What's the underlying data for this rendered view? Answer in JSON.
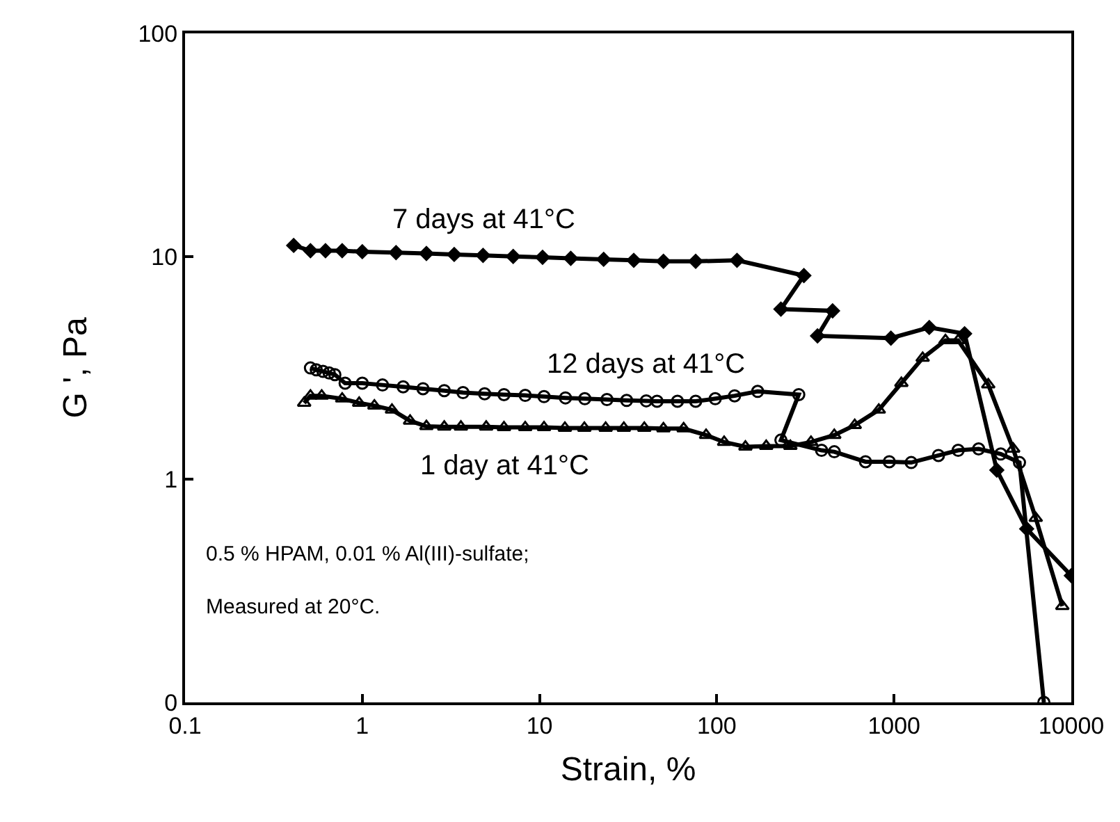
{
  "chart_data": {
    "type": "line",
    "xlabel": "Strain, %",
    "ylabel": "G ', Pa",
    "log": "xy",
    "grid": false,
    "legend": false,
    "xlim": [
      0.1,
      10000
    ],
    "xticks": [
      0.1,
      1,
      10,
      100,
      1000,
      10000
    ],
    "ylim": [
      0.1,
      100
    ],
    "yticks": [
      {
        "value": 0.1,
        "label": "0"
      },
      1,
      10,
      100
    ],
    "series": [
      {
        "name": "7 days at 41°C",
        "color": "#000000",
        "marker": "diamond",
        "x": [
          0.41,
          0.51,
          0.62,
          0.77,
          1.0,
          1.55,
          2.3,
          3.3,
          4.8,
          7.1,
          10.4,
          15,
          23,
          34,
          50,
          76,
          130,
          310,
          230,
          450,
          370,
          960,
          1580,
          2500,
          3800,
          5600,
          10000
        ],
        "values": [
          11.2,
          10.6,
          10.6,
          10.6,
          10.5,
          10.4,
          10.3,
          10.2,
          10.1,
          10,
          9.9,
          9.8,
          9.7,
          9.6,
          9.5,
          9.5,
          9.6,
          8.2,
          5.8,
          5.7,
          4.4,
          4.3,
          4.8,
          4.5,
          1.1,
          0.6,
          0.37
        ]
      },
      {
        "name": "12 days at 41°C",
        "color": "#000000",
        "marker": "circle",
        "x": [
          0.51,
          0.55,
          0.6,
          0.65,
          0.7,
          0.8,
          1.0,
          1.3,
          1.7,
          2.2,
          2.9,
          3.7,
          4.9,
          6.3,
          8.3,
          10.6,
          14,
          18,
          24,
          31,
          40,
          46,
          60,
          76,
          98,
          126,
          170,
          290,
          230,
          390,
          460,
          690,
          940,
          1250,
          1780,
          2300,
          3000,
          4000,
          5100,
          7000
        ],
        "values": [
          3.16,
          3.1,
          3.05,
          3.0,
          2.95,
          2.7,
          2.7,
          2.65,
          2.6,
          2.55,
          2.5,
          2.45,
          2.42,
          2.4,
          2.38,
          2.35,
          2.32,
          2.3,
          2.28,
          2.26,
          2.25,
          2.24,
          2.24,
          2.24,
          2.3,
          2.37,
          2.48,
          2.4,
          1.5,
          1.35,
          1.33,
          1.2,
          1.2,
          1.19,
          1.28,
          1.35,
          1.37,
          1.3,
          1.19,
          0.1
        ]
      },
      {
        "name": "1 day at 41°C",
        "color": "#000000",
        "marker": "triangle",
        "x": [
          0.47,
          0.51,
          0.59,
          0.77,
          0.96,
          1.17,
          1.47,
          1.86,
          2.3,
          2.9,
          3.6,
          5.0,
          6.3,
          8.3,
          10.6,
          13.9,
          17.9,
          23.6,
          29.9,
          39,
          50,
          65,
          87,
          110,
          145,
          190,
          260,
          340,
          460,
          600,
          820,
          1100,
          1450,
          1950,
          2300,
          3400,
          4700,
          6300,
          8900
        ],
        "values": [
          2.2,
          2.37,
          2.37,
          2.3,
          2.2,
          2.14,
          2.05,
          1.83,
          1.73,
          1.72,
          1.72,
          1.72,
          1.71,
          1.71,
          1.71,
          1.7,
          1.7,
          1.7,
          1.7,
          1.7,
          1.69,
          1.69,
          1.58,
          1.47,
          1.4,
          1.41,
          1.41,
          1.47,
          1.58,
          1.75,
          2.05,
          2.7,
          3.5,
          4.2,
          4.2,
          2.66,
          1.37,
          0.67,
          0.27
        ]
      }
    ],
    "annotations": [
      "0.5 % HPAM, 0.01 % Al(III)-sulfate;",
      "Measured at 20°C."
    ]
  }
}
